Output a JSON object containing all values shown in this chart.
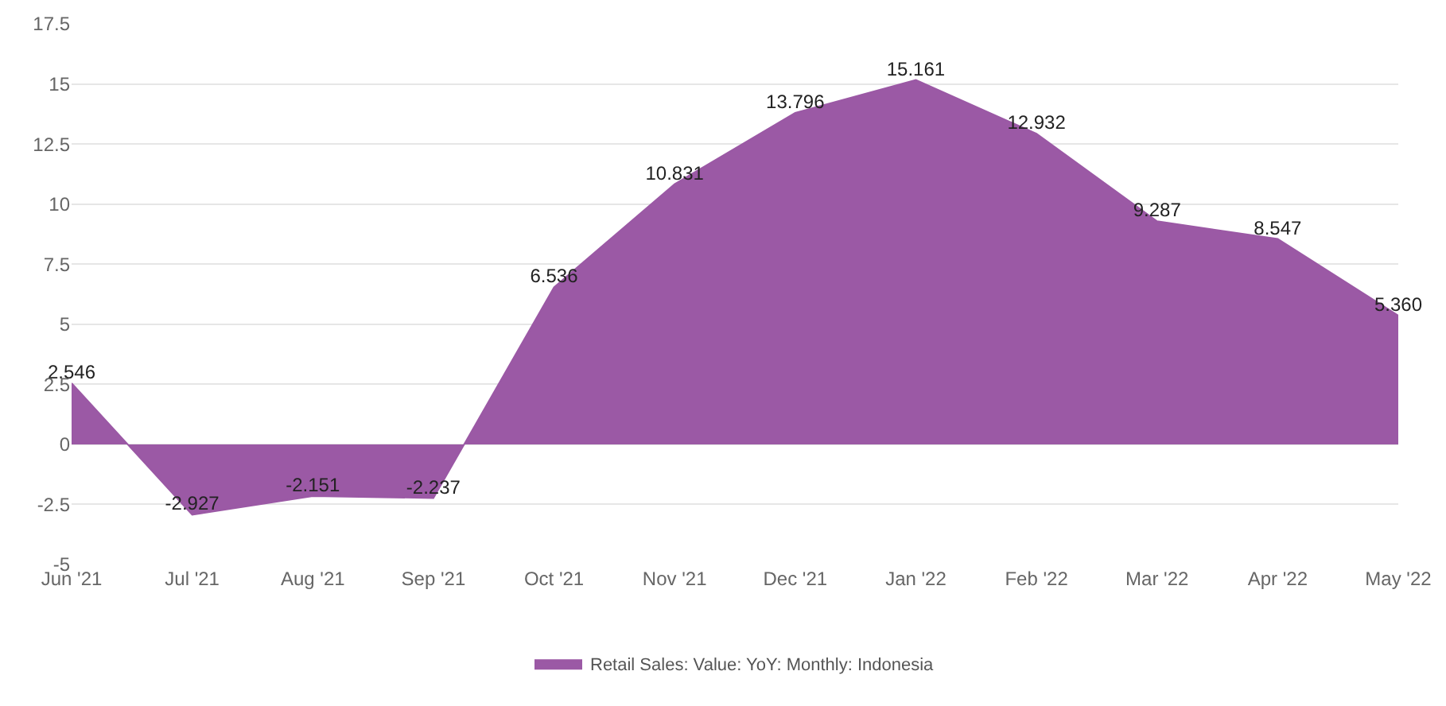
{
  "chart_data": {
    "type": "area",
    "categories": [
      "Jun '21",
      "Jul '21",
      "Aug '21",
      "Sep '21",
      "Oct '21",
      "Nov '21",
      "Dec '21",
      "Jan '22",
      "Feb '22",
      "Mar '22",
      "Apr '22",
      "May '22"
    ],
    "series": [
      {
        "name": "Retail Sales: Value: YoY: Monthly: Indonesia",
        "color": "#9b59a5",
        "values": [
          2.546,
          -2.927,
          -2.151,
          -2.237,
          6.536,
          10.831,
          13.796,
          15.161,
          12.932,
          9.287,
          8.547,
          5.36
        ]
      }
    ],
    "value_labels": [
      "2.546",
      "-2.927",
      "-2.151",
      "-2.237",
      "6.536",
      "10.831",
      "13.796",
      "15.161",
      "12.932",
      "9.287",
      "8.547",
      "5.360"
    ],
    "ylim": [
      -5,
      17.5
    ],
    "yticks": [
      -5,
      -2.5,
      0,
      2.5,
      5,
      7.5,
      10,
      12.5,
      15,
      17.5
    ],
    "grid": "y",
    "legend": "bottom"
  }
}
